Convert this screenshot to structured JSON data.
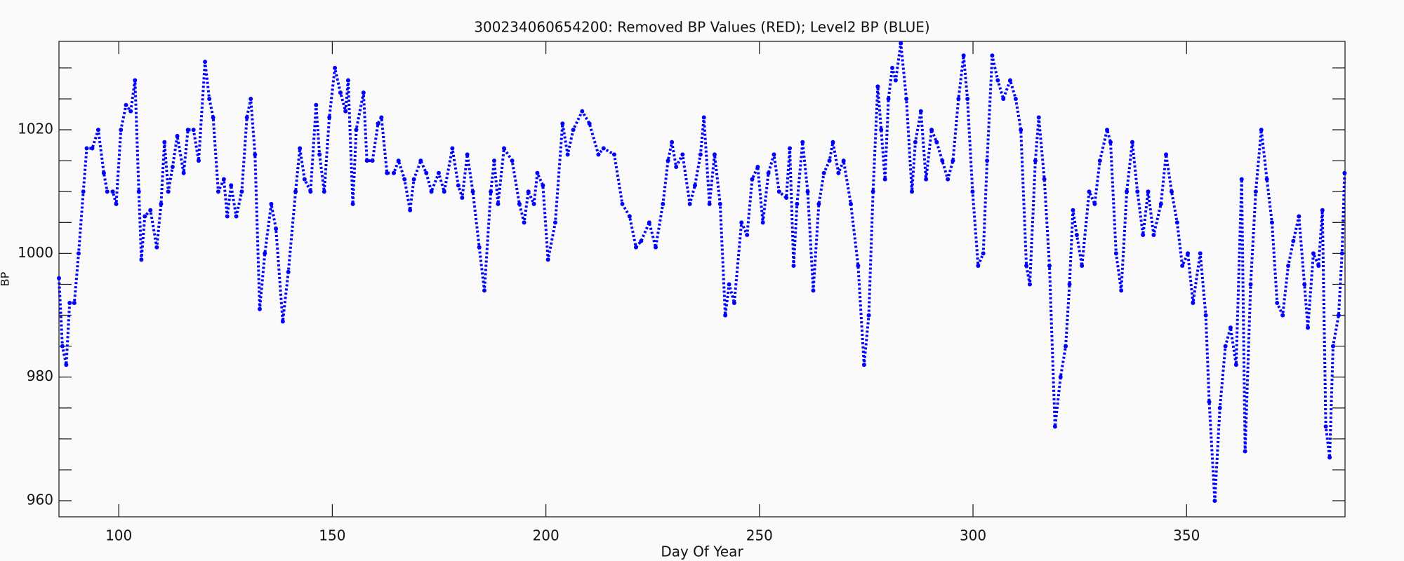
{
  "chart_data": {
    "type": "line",
    "markers": true,
    "title": "300234060654200: Removed BP Values (RED); Level2 BP (BLUE)",
    "xlabel": "Day Of Year",
    "ylabel": "BP",
    "xlim": [
      86,
      387.1
    ],
    "ylim": [
      957.4,
      1034.3
    ],
    "xticks": [
      100,
      150,
      200,
      250,
      300,
      350
    ],
    "yticks": [
      960,
      980,
      1000,
      1020
    ],
    "yminorticks": [
      965,
      970,
      975,
      985,
      990,
      995,
      1005,
      1010,
      1015,
      1025,
      1030
    ],
    "series": [
      {
        "name": "Level2 BP",
        "color": "#0000ff",
        "x": [
          86.0,
          86.8,
          87.7,
          88.5,
          89.6,
          90.6,
          91.7,
          92.5,
          93.8,
          95.2,
          96.5,
          97.3,
          98.6,
          99.4,
          100.5,
          101.7,
          102.8,
          103.8,
          104.7,
          105.3,
          106.1,
          107.4,
          108.9,
          109.9,
          110.7,
          111.6,
          112.6,
          113.7,
          115.2,
          116.2,
          117.5,
          118.7,
          120.2,
          121.2,
          122.1,
          123.3,
          124.6,
          125.4,
          126.3,
          127.5,
          128.8,
          130.0,
          130.9,
          131.9,
          133.0,
          134.2,
          135.7,
          136.8,
          138.4,
          139.7,
          141.4,
          142.4,
          143.5,
          144.9,
          146.2,
          147.0,
          148.1,
          149.3,
          150.6,
          151.9,
          153.1,
          153.7,
          154.8,
          155.6,
          157.3,
          158.1,
          159.4,
          160.7,
          161.5,
          162.8,
          164.4,
          165.5,
          166.9,
          168.2,
          169.1,
          170.7,
          172.0,
          173.2,
          174.9,
          176.2,
          178.1,
          179.5,
          180.4,
          181.6,
          182.9,
          184.4,
          185.6,
          187.1,
          187.9,
          188.8,
          190.2,
          192.1,
          193.8,
          194.9,
          195.9,
          197.2,
          198.0,
          199.3,
          200.5,
          202.2,
          203.9,
          205.1,
          206.4,
          208.5,
          210.2,
          212.3,
          213.5,
          216.0,
          217.9,
          219.6,
          221.1,
          222.3,
          224.2,
          225.7,
          227.4,
          228.6,
          229.5,
          230.5,
          232.0,
          233.7,
          234.9,
          236.2,
          237.0,
          238.3,
          239.5,
          240.8,
          242.0,
          242.9,
          244.1,
          245.8,
          247.1,
          248.3,
          249.6,
          250.8,
          252.1,
          253.4,
          254.6,
          256.3,
          257.1,
          258.0,
          258.8,
          260.1,
          261.3,
          262.6,
          263.9,
          265.1,
          266.4,
          267.2,
          268.5,
          269.7,
          271.4,
          273.1,
          274.5,
          275.6,
          276.6,
          277.7,
          278.5,
          279.4,
          280.2,
          281.1,
          281.9,
          283.1,
          284.4,
          285.7,
          286.5,
          287.8,
          289.0,
          290.3,
          291.5,
          292.8,
          294.1,
          295.3,
          296.6,
          297.8,
          298.7,
          299.9,
          301.2,
          302.4,
          303.3,
          304.5,
          305.8,
          307.1,
          308.7,
          310.0,
          311.2,
          312.5,
          313.3,
          314.6,
          315.4,
          316.7,
          317.9,
          319.2,
          320.5,
          321.7,
          322.6,
          323.4,
          324.3,
          325.5,
          327.2,
          328.5,
          329.7,
          331.4,
          332.2,
          333.5,
          334.7,
          336.0,
          337.3,
          338.5,
          339.8,
          341.0,
          342.3,
          344.0,
          345.2,
          346.5,
          347.8,
          349.0,
          350.3,
          351.5,
          353.2,
          354.5,
          355.3,
          356.6,
          357.8,
          359.1,
          360.3,
          361.6,
          362.9,
          363.7,
          365.0,
          366.2,
          367.5,
          368.8,
          370.0,
          371.2,
          372.5,
          373.8,
          375.0,
          376.3,
          377.6,
          378.4,
          379.7,
          380.9,
          381.8,
          382.6,
          383.5,
          384.3,
          385.6,
          386.4,
          387.0
        ],
        "values": [
          996,
          985,
          982,
          992,
          992,
          1000,
          1010,
          1017,
          1017,
          1020,
          1013,
          1010,
          1010,
          1008,
          1020,
          1024,
          1023,
          1028,
          1010,
          999,
          1006,
          1007,
          1001,
          1008,
          1018,
          1010,
          1014,
          1019,
          1013,
          1020,
          1020,
          1015,
          1031,
          1025,
          1022,
          1010,
          1012,
          1006,
          1011,
          1006,
          1010,
          1022,
          1025,
          1016,
          991,
          1000,
          1008,
          1004,
          989,
          997,
          1010,
          1017,
          1012,
          1010,
          1024,
          1016,
          1010,
          1022,
          1030,
          1026,
          1023,
          1028,
          1008,
          1020,
          1026,
          1015,
          1015,
          1021,
          1022,
          1013,
          1013,
          1015,
          1012,
          1007,
          1012,
          1015,
          1013,
          1010,
          1013,
          1010,
          1017,
          1011,
          1009,
          1016,
          1010,
          1001,
          994,
          1010,
          1015,
          1008,
          1017,
          1015,
          1008,
          1005,
          1010,
          1008,
          1013,
          1011,
          999,
          1005,
          1021,
          1016,
          1020,
          1023,
          1021,
          1016,
          1017,
          1016,
          1008,
          1006,
          1001,
          1002,
          1005,
          1001,
          1008,
          1015,
          1018,
          1014,
          1016,
          1008,
          1011,
          1016,
          1022,
          1008,
          1016,
          1008,
          990,
          995,
          992,
          1005,
          1003,
          1012,
          1014,
          1005,
          1013,
          1016,
          1010,
          1009,
          1017,
          998,
          1008,
          1018,
          1010,
          994,
          1008,
          1013,
          1015,
          1018,
          1013,
          1015,
          1008,
          998,
          982,
          990,
          1010,
          1027,
          1020,
          1012,
          1025,
          1030,
          1028,
          1034,
          1025,
          1010,
          1018,
          1023,
          1012,
          1020,
          1018,
          1015,
          1012,
          1015,
          1025,
          1032,
          1025,
          1010,
          998,
          1000,
          1015,
          1032,
          1028,
          1025,
          1028,
          1025,
          1020,
          998,
          995,
          1015,
          1022,
          1012,
          998,
          972,
          980,
          985,
          995,
          1007,
          1003,
          998,
          1010,
          1008,
          1015,
          1020,
          1018,
          1000,
          994,
          1010,
          1018,
          1010,
          1003,
          1010,
          1003,
          1008,
          1016,
          1010,
          1005,
          998,
          1000,
          992,
          1000,
          990,
          976,
          960,
          975,
          985,
          988,
          982,
          1012,
          968,
          995,
          1010,
          1020,
          1012,
          1005,
          992,
          990,
          998,
          1002,
          1006,
          995,
          988,
          1000,
          998,
          1007,
          972,
          967,
          985,
          990,
          1000,
          1013
        ]
      }
    ]
  }
}
